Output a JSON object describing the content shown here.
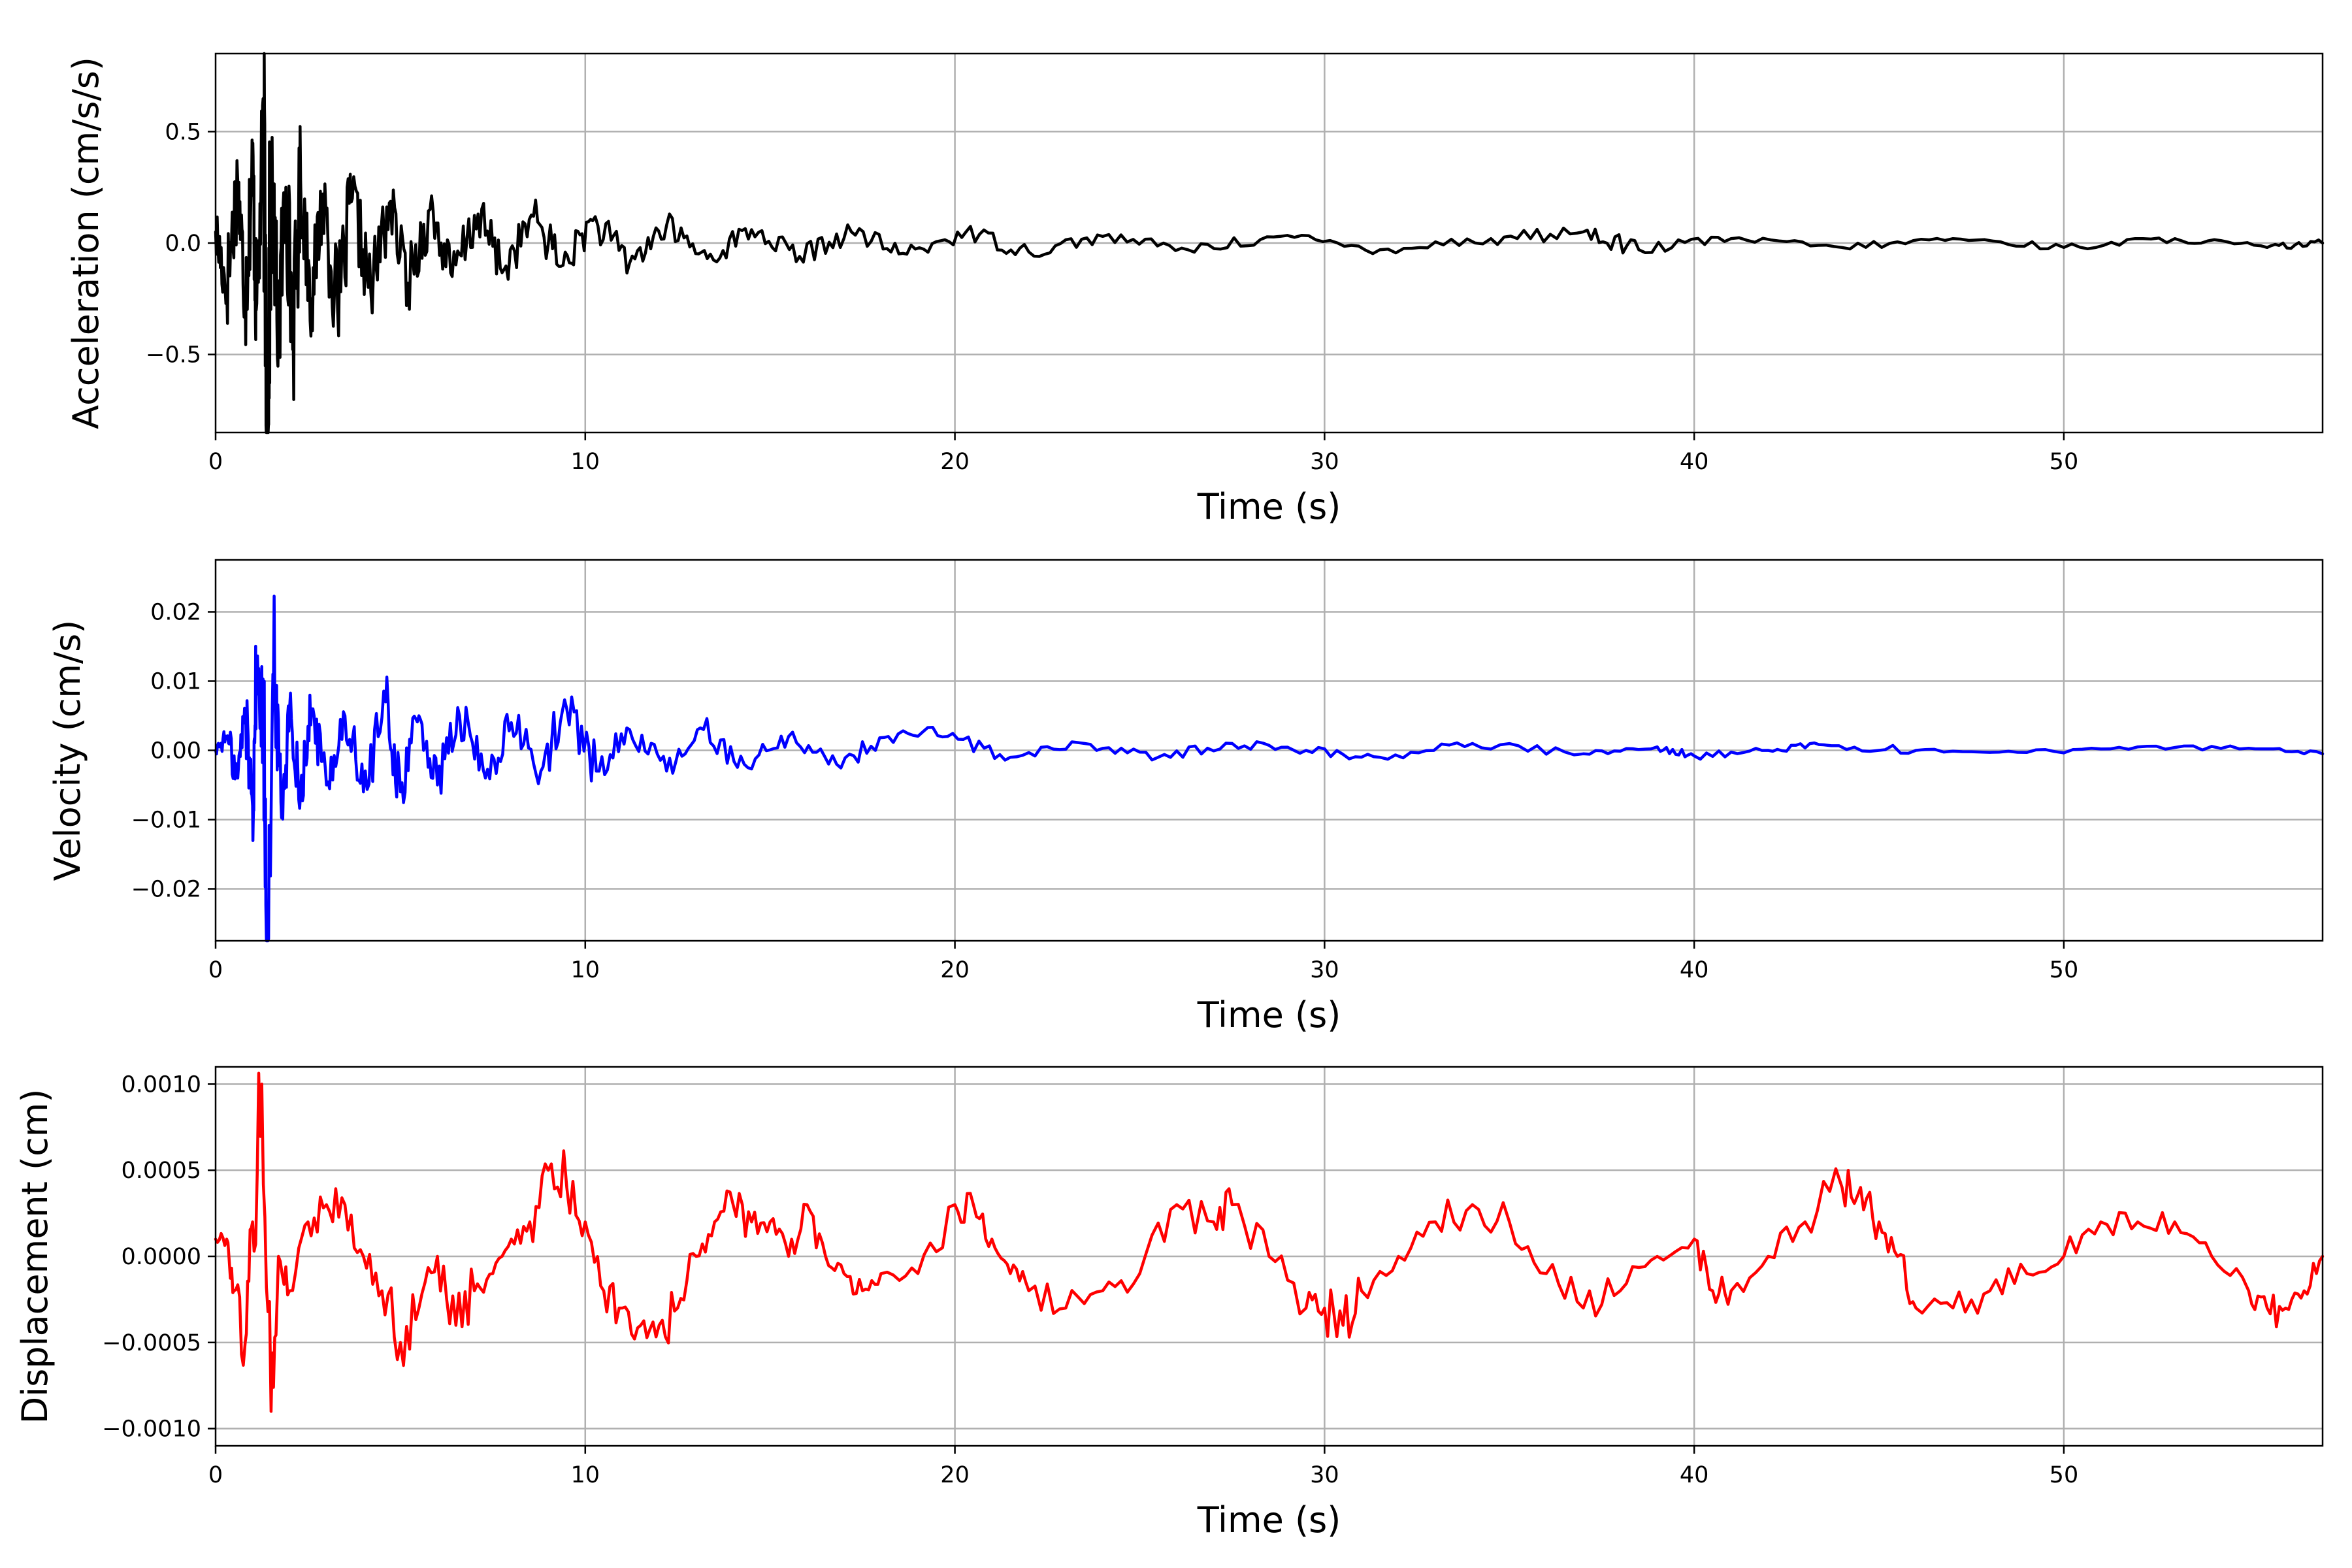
{
  "chart_data": [
    {
      "type": "line",
      "xlabel": "Time (s)",
      "ylabel": "Acceleration (cm/s/s)",
      "xlim": [
        0,
        57
      ],
      "ylim": [
        -0.85,
        0.85
      ],
      "xticks": [
        0,
        10,
        20,
        30,
        40,
        50
      ],
      "xtick_labels": [
        "0",
        "10",
        "20",
        "30",
        "40",
        "50"
      ],
      "yticks": [
        0.5,
        0.0,
        -0.5
      ],
      "ytick_labels": [
        "0.5",
        "0.0",
        "−0.5"
      ],
      "grid": true,
      "series": [
        {
          "color": "#000000",
          "x": [
            0,
            0.3,
            0.6,
            0.8,
            1.0,
            1.1,
            1.3,
            1.4,
            1.5,
            1.7,
            1.9,
            2.1,
            2.3,
            2.6,
            2.9,
            3.3,
            3.7,
            4.2,
            4.7,
            5.2,
            5.8,
            6.4,
            7.1,
            7.8,
            8.6,
            9.4,
            10.2,
            11.2,
            12.2,
            13.3,
            14.5,
            15.8,
            17.2,
            18.7,
            20.3,
            22.0,
            24.0,
            26.3,
            28.8,
            31.5,
            34.5,
            37.0,
            38.5,
            41.0,
            44.0,
            47.0,
            50.0,
            53.0,
            55.5,
            57
          ],
          "y": [
            0.05,
            -0.2,
            0.28,
            -0.25,
            0.35,
            -0.3,
            0.46,
            -0.78,
            0.3,
            -0.4,
            0.25,
            -0.42,
            0.28,
            -0.25,
            0.22,
            -0.3,
            0.2,
            -0.22,
            0.18,
            -0.18,
            0.15,
            -0.15,
            0.13,
            -0.12,
            0.12,
            -0.1,
            0.1,
            -0.09,
            0.08,
            -0.07,
            0.06,
            -0.06,
            0.05,
            -0.05,
            0.05,
            -0.04,
            0.03,
            -0.03,
            0.03,
            -0.03,
            0.02,
            0.05,
            -0.03,
            0.02,
            -0.02,
            0.02,
            -0.02,
            0.02,
            -0.02,
            0.0
          ]
        }
      ]
    },
    {
      "type": "line",
      "xlabel": "Time (s)",
      "ylabel": "Velocity (cm/s)",
      "xlim": [
        0,
        57
      ],
      "ylim": [
        -0.0275,
        0.0275
      ],
      "xticks": [
        0,
        10,
        20,
        30,
        40,
        50
      ],
      "xtick_labels": [
        "0",
        "10",
        "20",
        "30",
        "40",
        "50"
      ],
      "yticks": [
        0.02,
        0.01,
        0.0,
        -0.01,
        -0.02
      ],
      "ytick_labels": [
        "0.02",
        "0.01",
        "0.00",
        "−0.01",
        "−0.02"
      ],
      "grid": true,
      "series": [
        {
          "color": "#0000ff",
          "x": [
            0,
            0.3,
            0.6,
            0.8,
            1.0,
            1.1,
            1.3,
            1.4,
            1.6,
            1.8,
            2.0,
            2.3,
            2.6,
            3.0,
            3.5,
            4.0,
            4.6,
            5.0,
            5.5,
            6.0,
            6.6,
            7.3,
            8.0,
            8.8,
            9.5,
            10.3,
            11.2,
            12.2,
            13.2,
            14.3,
            15.5,
            16.8,
            18.2,
            19.8,
            21.5,
            23.5,
            25.5,
            27.5,
            29.5,
            31.5,
            34.0,
            37.0,
            39.0,
            40.0,
            42.0,
            43.5,
            46.0,
            49.0,
            52.0,
            55.0,
            57
          ],
          "y": [
            0.0,
            0.002,
            -0.004,
            0.006,
            -0.008,
            0.011,
            0.004,
            -0.025,
            0.009,
            -0.008,
            0.006,
            -0.006,
            0.006,
            -0.005,
            0.005,
            -0.006,
            0.007,
            -0.006,
            0.005,
            -0.005,
            0.005,
            -0.004,
            0.004,
            -0.003,
            0.006,
            -0.003,
            0.003,
            -0.003,
            0.003,
            -0.002,
            0.002,
            -0.002,
            0.002,
            0.002,
            -0.001,
            0.001,
            -0.001,
            0.001,
            0.0,
            -0.001,
            0.001,
            -0.0005,
            0.0005,
            -0.0008,
            0.0,
            0.0008,
            0.0,
            -0.0003,
            0.0005,
            0.0003,
            -0.0005
          ]
        }
      ]
    },
    {
      "type": "line",
      "xlabel": "Time (s)",
      "ylabel": "Displacement (cm)",
      "xlim": [
        0,
        57
      ],
      "ylim": [
        -0.0011,
        0.0011
      ],
      "xticks": [
        0,
        10,
        20,
        30,
        40,
        50
      ],
      "xtick_labels": [
        "0",
        "10",
        "20",
        "30",
        "40",
        "50"
      ],
      "yticks": [
        0.001,
        0.0005,
        0.0,
        -0.0005,
        -0.001
      ],
      "ytick_labels": [
        "0.0010",
        "0.0005",
        "0.0000",
        "−0.0005",
        "−0.0010"
      ],
      "grid": true,
      "series": [
        {
          "color": "#ff0000",
          "x": [
            0,
            0.3,
            0.5,
            0.8,
            1.0,
            1.25,
            1.5,
            1.7,
            2.0,
            2.5,
            3.0,
            3.5,
            4.0,
            4.5,
            5.0,
            5.5,
            6.0,
            6.5,
            7.0,
            7.5,
            8.0,
            8.5,
            9.0,
            9.5,
            10.0,
            10.5,
            11.0,
            11.5,
            12.0,
            12.5,
            13.0,
            13.5,
            14.0,
            14.5,
            15.0,
            15.5,
            16.0,
            16.5,
            17.0,
            17.5,
            18.0,
            19.0,
            20.0,
            20.5,
            21.0,
            21.5,
            22.0,
            23.0,
            24.0,
            25.0,
            26.0,
            27.0,
            27.5,
            28.5,
            29.5,
            30.0,
            30.5,
            31.0,
            32.0,
            33.0,
            34.0,
            35.0,
            36.0,
            37.0,
            38.0,
            39.0,
            40.0,
            40.5,
            41.0,
            42.0,
            43.0,
            44.0,
            44.5,
            45.0,
            45.5,
            46.0,
            47.0,
            48.0,
            49.0,
            50.0,
            51.0,
            52.0,
            53.0,
            54.0,
            55.0,
            55.5,
            56.0,
            56.5,
            57
          ],
          "y": [
            0.0001,
            0.0001,
            -0.0002,
            -0.0005,
            0.0002,
            0.001,
            -0.0009,
            0.0,
            -0.0002,
            0.0002,
            0.0003,
            0.0003,
            0.0,
            -0.0002,
            -0.0005,
            -0.0003,
            0.0,
            -0.0004,
            -0.0002,
            -0.0001,
            0.0001,
            0.0002,
            0.0005,
            0.0004,
            0.0002,
            -0.0002,
            -0.0003,
            -0.0004,
            -0.0004,
            -0.0003,
            0.0,
            0.0002,
            0.0003,
            0.0002,
            0.0002,
            0.0,
            0.0003,
            0.0,
            -0.0001,
            -0.0002,
            -0.0001,
            -0.0001,
            0.0003,
            0.0003,
            0.0001,
            -0.0001,
            -0.0002,
            -0.0003,
            -0.0002,
            -0.0001,
            0.0003,
            0.0002,
            0.0003,
            0.0,
            -0.0003,
            -0.0003,
            -0.0004,
            -0.0002,
            0.0,
            0.0002,
            0.0003,
            0.0002,
            -0.0001,
            -0.0003,
            -0.0002,
            0.0,
            0.0001,
            -0.0002,
            -0.0002,
            0.0,
            0.0002,
            0.0004,
            0.0004,
            0.0002,
            0.0,
            -0.0003,
            -0.0003,
            -0.0002,
            -0.0001,
            0.0,
            0.0002,
            0.0002,
            0.0002,
            0.0,
            -0.0002,
            -0.0003,
            -0.0003,
            -0.0002,
            0.0
          ]
        }
      ]
    }
  ]
}
